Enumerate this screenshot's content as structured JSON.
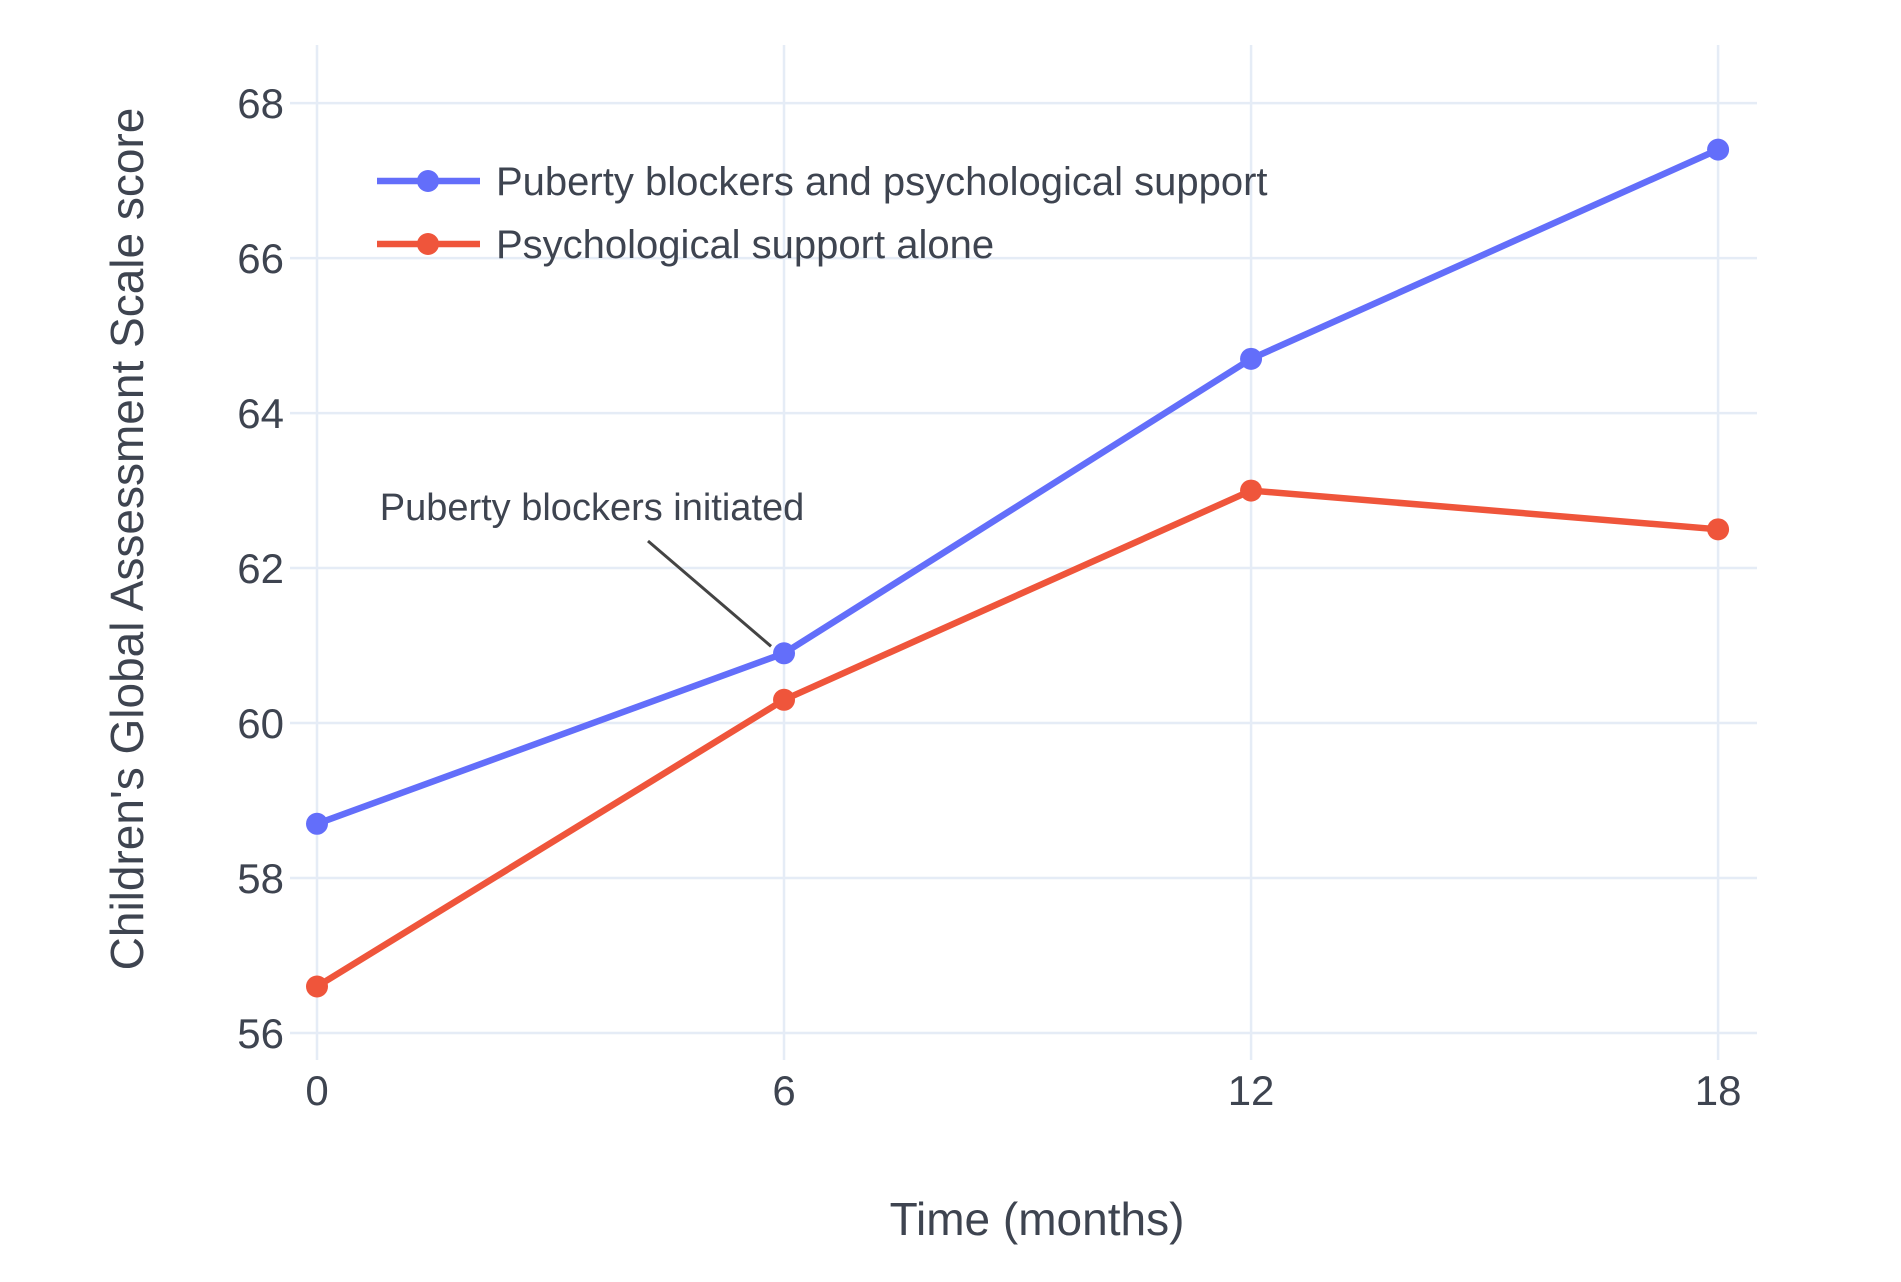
{
  "chart_data": {
    "type": "line",
    "title": "",
    "xlabel": "Time (months)",
    "ylabel": "Children's Global Assessment Scale score",
    "x": [
      0,
      6,
      12,
      18
    ],
    "series": [
      {
        "name": "Puberty blockers and psychological support",
        "color": "#636EFA",
        "values": [
          58.7,
          60.9,
          64.7,
          67.4
        ]
      },
      {
        "name": "Psychological support alone",
        "color": "#EF553B",
        "values": [
          56.6,
          60.3,
          63.0,
          62.5
        ]
      }
    ],
    "xticks": [
      0,
      6,
      12,
      18
    ],
    "yticks": [
      56,
      58,
      60,
      62,
      64,
      66,
      68
    ],
    "xlim": [
      0,
      18.5
    ],
    "ylim": [
      56,
      68.75
    ],
    "grid": true,
    "legend_position": "top-left-inside",
    "annotations": [
      {
        "text": "Puberty blockers initiated",
        "target_series": 0,
        "target_x": 6,
        "target_y": 60.9
      }
    ]
  },
  "styles": {
    "background": "#ffffff",
    "grid_color": "#E5ECF6",
    "text_color": "#3E4450",
    "arrow_color": "#444444"
  }
}
